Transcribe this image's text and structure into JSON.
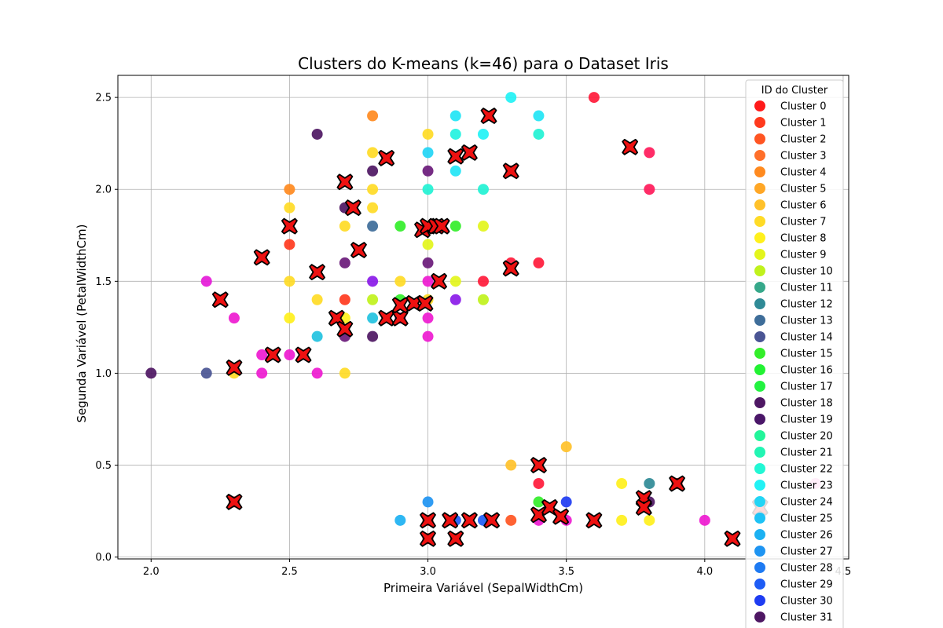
{
  "chart_data": {
    "type": "scatter",
    "title": "Clusters do K-means (k=46) para o Dataset Iris",
    "xlabel": "Primeira Variável (SepalWidthCm)",
    "ylabel": "Segunda Variável (PetalWidthCm)",
    "xlim": [
      1.88,
      4.52
    ],
    "ylim": [
      -0.01,
      2.62
    ],
    "xticks": [
      "2.0",
      "2.5",
      "3.0",
      "3.5",
      "4.0",
      "4.5"
    ],
    "yticks": [
      "0.0",
      "0.5",
      "1.0",
      "1.5",
      "2.0",
      "2.5"
    ],
    "grid": true,
    "legend": {
      "title": "ID do Cluster",
      "placement": "right",
      "entries": [
        {
          "label": "Cluster 0",
          "color": "#ff1a1a"
        },
        {
          "label": "Cluster 1",
          "color": "#ff3a1e"
        },
        {
          "label": "Cluster 2",
          "color": "#ff5522"
        },
        {
          "label": "Cluster 3",
          "color": "#ff6f2a"
        },
        {
          "label": "Cluster 4",
          "color": "#ff8a1f"
        },
        {
          "label": "Cluster 5",
          "color": "#ffa726"
        },
        {
          "label": "Cluster 6",
          "color": "#ffc12a"
        },
        {
          "label": "Cluster 7",
          "color": "#ffdb26"
        },
        {
          "label": "Cluster 8",
          "color": "#fff01c"
        },
        {
          "label": "Cluster 9",
          "color": "#e3f51c"
        },
        {
          "label": "Cluster 10",
          "color": "#c0f21c"
        },
        {
          "label": "Cluster 11",
          "color": "#36a88a"
        },
        {
          "label": "Cluster 12",
          "color": "#2f8a96"
        },
        {
          "label": "Cluster 13",
          "color": "#3e6d99"
        },
        {
          "label": "Cluster 14",
          "color": "#4a5594"
        },
        {
          "label": "Cluster 15",
          "color": "#33ee2a"
        },
        {
          "label": "Cluster 16",
          "color": "#22f233"
        },
        {
          "label": "Cluster 17",
          "color": "#22f240"
        },
        {
          "label": "Cluster 18",
          "color": "#4e1763"
        },
        {
          "label": "Cluster 19",
          "color": "#4a1668"
        },
        {
          "label": "Cluster 20",
          "color": "#22f59a"
        },
        {
          "label": "Cluster 21",
          "color": "#22f5b3"
        },
        {
          "label": "Cluster 22",
          "color": "#22f7d4"
        },
        {
          "label": "Cluster 23",
          "color": "#22f2f5"
        },
        {
          "label": "Cluster 24",
          "color": "#22d5f5"
        },
        {
          "label": "Cluster 25",
          "color": "#1ec2f5"
        },
        {
          "label": "Cluster 26",
          "color": "#1cb1f2"
        },
        {
          "label": "Cluster 27",
          "color": "#1e94f2"
        },
        {
          "label": "Cluster 28",
          "color": "#1e7af2"
        },
        {
          "label": "Cluster 29",
          "color": "#1e5cf5"
        },
        {
          "label": "Cluster 30",
          "color": "#1e3cf2"
        },
        {
          "label": "Cluster 31",
          "color": "#4e1763"
        }
      ]
    },
    "points": [
      {
        "x": 2.0,
        "y": 1.0,
        "c": "#4e1763"
      },
      {
        "x": 2.2,
        "y": 1.5,
        "c": "#e51ad8"
      },
      {
        "x": 2.2,
        "y": 1.0,
        "c": "#4a5594"
      },
      {
        "x": 2.3,
        "y": 1.3,
        "c": "#ee1ad0"
      },
      {
        "x": 2.3,
        "y": 1.0,
        "c": "#ffdb26"
      },
      {
        "x": 2.3,
        "y": 0.3,
        "c": "#ff1a1a"
      },
      {
        "x": 2.4,
        "y": 1.1,
        "c": "#ee1ad0"
      },
      {
        "x": 2.4,
        "y": 1.0,
        "c": "#ee1ad0"
      },
      {
        "x": 2.5,
        "y": 2.0,
        "c": "#ff8a1f"
      },
      {
        "x": 2.5,
        "y": 1.9,
        "c": "#ffdb26"
      },
      {
        "x": 2.5,
        "y": 1.7,
        "c": "#ff3a1e"
      },
      {
        "x": 2.5,
        "y": 1.5,
        "c": "#ffdb26"
      },
      {
        "x": 2.5,
        "y": 1.3,
        "c": "#fff01c"
      },
      {
        "x": 2.5,
        "y": 1.1,
        "c": "#ee1ad0"
      },
      {
        "x": 2.6,
        "y": 2.3,
        "c": "#4e1763"
      },
      {
        "x": 2.6,
        "y": 1.4,
        "c": "#ffdb26"
      },
      {
        "x": 2.6,
        "y": 1.2,
        "c": "#22c2e0"
      },
      {
        "x": 2.6,
        "y": 1.0,
        "c": "#ee1ad0"
      },
      {
        "x": 2.7,
        "y": 1.9,
        "c": "#4e1763"
      },
      {
        "x": 2.7,
        "y": 1.8,
        "c": "#ffdb26"
      },
      {
        "x": 2.7,
        "y": 1.6,
        "c": "#6a1a7a"
      },
      {
        "x": 2.7,
        "y": 1.4,
        "c": "#ff3a1e"
      },
      {
        "x": 2.7,
        "y": 1.3,
        "c": "#fff01c"
      },
      {
        "x": 2.7,
        "y": 1.2,
        "c": "#6a1a7a"
      },
      {
        "x": 2.7,
        "y": 1.0,
        "c": "#ffdb26"
      },
      {
        "x": 2.8,
        "y": 2.4,
        "c": "#ff8a1f"
      },
      {
        "x": 2.8,
        "y": 2.2,
        "c": "#ffdb26"
      },
      {
        "x": 2.8,
        "y": 2.1,
        "c": "#4e1763"
      },
      {
        "x": 2.8,
        "y": 2.0,
        "c": "#ffdb26"
      },
      {
        "x": 2.8,
        "y": 1.9,
        "c": "#ffdb26"
      },
      {
        "x": 2.8,
        "y": 1.8,
        "c": "#3e6d99"
      },
      {
        "x": 2.8,
        "y": 1.5,
        "c": "#8a1ae8"
      },
      {
        "x": 2.8,
        "y": 1.4,
        "c": "#c0f21c"
      },
      {
        "x": 2.8,
        "y": 1.3,
        "c": "#22c2e0"
      },
      {
        "x": 2.8,
        "y": 1.2,
        "c": "#4e1763"
      },
      {
        "x": 2.9,
        "y": 1.8,
        "c": "#33ee2a"
      },
      {
        "x": 2.9,
        "y": 1.5,
        "c": "#ffdb26"
      },
      {
        "x": 2.9,
        "y": 1.4,
        "c": "#33ee2a"
      },
      {
        "x": 2.9,
        "y": 1.3,
        "c": "#ee1ad0"
      },
      {
        "x": 2.9,
        "y": 0.2,
        "c": "#1cb1f2"
      },
      {
        "x": 3.0,
        "y": 2.3,
        "c": "#ffdb26"
      },
      {
        "x": 3.0,
        "y": 2.2,
        "c": "#22d5f5"
      },
      {
        "x": 3.0,
        "y": 2.1,
        "c": "#6a1a7a"
      },
      {
        "x": 3.0,
        "y": 2.0,
        "c": "#22f2d4"
      },
      {
        "x": 3.0,
        "y": 1.8,
        "c": "#ffdb26"
      },
      {
        "x": 3.0,
        "y": 1.7,
        "c": "#e3f51c"
      },
      {
        "x": 3.0,
        "y": 1.6,
        "c": "#6a1a7a"
      },
      {
        "x": 3.0,
        "y": 1.5,
        "c": "#ee1ad0"
      },
      {
        "x": 3.0,
        "y": 1.4,
        "c": "#ffdb26"
      },
      {
        "x": 3.0,
        "y": 1.3,
        "c": "#ee1ad0"
      },
      {
        "x": 3.0,
        "y": 1.2,
        "c": "#ee1ad0"
      },
      {
        "x": 3.0,
        "y": 0.3,
        "c": "#1e94f2"
      },
      {
        "x": 3.0,
        "y": 0.2,
        "c": "#ff3a1e"
      },
      {
        "x": 3.0,
        "y": 0.1,
        "c": "#ff1a1a"
      },
      {
        "x": 3.1,
        "y": 2.4,
        "c": "#22e5f5"
      },
      {
        "x": 3.1,
        "y": 2.3,
        "c": "#22f2e0"
      },
      {
        "x": 3.1,
        "y": 2.1,
        "c": "#22e5f5"
      },
      {
        "x": 3.1,
        "y": 1.8,
        "c": "#33ee2a"
      },
      {
        "x": 3.1,
        "y": 1.5,
        "c": "#e3f51c"
      },
      {
        "x": 3.1,
        "y": 1.4,
        "c": "#8a1ae8"
      },
      {
        "x": 3.1,
        "y": 0.2,
        "c": "#1e5cf5"
      },
      {
        "x": 3.1,
        "y": 0.1,
        "c": "#ff1a1a"
      },
      {
        "x": 3.2,
        "y": 2.3,
        "c": "#22f2f5"
      },
      {
        "x": 3.2,
        "y": 2.0,
        "c": "#22f2d4"
      },
      {
        "x": 3.2,
        "y": 1.8,
        "c": "#e3f51c"
      },
      {
        "x": 3.2,
        "y": 1.5,
        "c": "#ff1a3a"
      },
      {
        "x": 3.2,
        "y": 1.4,
        "c": "#c0f21c"
      },
      {
        "x": 3.2,
        "y": 0.2,
        "c": "#1e5cf5"
      },
      {
        "x": 3.3,
        "y": 2.5,
        "c": "#22f2f5"
      },
      {
        "x": 3.3,
        "y": 2.1,
        "c": "#ff1a3a"
      },
      {
        "x": 3.3,
        "y": 1.6,
        "c": "#ff1a3a"
      },
      {
        "x": 3.3,
        "y": 0.5,
        "c": "#ffc12a"
      },
      {
        "x": 3.3,
        "y": 0.2,
        "c": "#ff5522"
      },
      {
        "x": 3.4,
        "y": 2.4,
        "c": "#22e5f5"
      },
      {
        "x": 3.4,
        "y": 2.3,
        "c": "#22f2d4"
      },
      {
        "x": 3.4,
        "y": 1.6,
        "c": "#ff1a3a"
      },
      {
        "x": 3.4,
        "y": 0.4,
        "c": "#ff1a3a"
      },
      {
        "x": 3.4,
        "y": 0.3,
        "c": "#33ee2a"
      },
      {
        "x": 3.4,
        "y": 0.2,
        "c": "#ee1ad0"
      },
      {
        "x": 3.5,
        "y": 0.6,
        "c": "#ffc12a"
      },
      {
        "x": 3.5,
        "y": 0.3,
        "c": "#1e3cf2"
      },
      {
        "x": 3.5,
        "y": 0.2,
        "c": "#ee1ad0"
      },
      {
        "x": 3.6,
        "y": 2.5,
        "c": "#ff1a3a"
      },
      {
        "x": 3.7,
        "y": 0.4,
        "c": "#fff01c"
      },
      {
        "x": 3.7,
        "y": 0.2,
        "c": "#fff01c"
      },
      {
        "x": 3.8,
        "y": 2.2,
        "c": "#ff1a5a"
      },
      {
        "x": 3.8,
        "y": 2.0,
        "c": "#ff1a5a"
      },
      {
        "x": 3.8,
        "y": 0.4,
        "c": "#2f8a96"
      },
      {
        "x": 3.8,
        "y": 0.3,
        "c": "#4e1763"
      },
      {
        "x": 3.8,
        "y": 0.2,
        "c": "#fff01c"
      },
      {
        "x": 3.9,
        "y": 0.4,
        "c": "#ff1a1a"
      },
      {
        "x": 4.0,
        "y": 0.2,
        "c": "#ee1ad0"
      },
      {
        "x": 4.4,
        "y": 0.4,
        "c": "#ff7ad0"
      }
    ],
    "centroids": [
      {
        "x": 2.25,
        "y": 1.4
      },
      {
        "x": 2.3,
        "y": 1.03
      },
      {
        "x": 2.3,
        "y": 0.3
      },
      {
        "x": 2.4,
        "y": 1.63
      },
      {
        "x": 2.44,
        "y": 1.1
      },
      {
        "x": 2.5,
        "y": 1.8
      },
      {
        "x": 2.55,
        "y": 1.1
      },
      {
        "x": 2.6,
        "y": 1.55
      },
      {
        "x": 2.67,
        "y": 1.3
      },
      {
        "x": 2.7,
        "y": 2.04
      },
      {
        "x": 2.7,
        "y": 1.24
      },
      {
        "x": 2.73,
        "y": 1.9
      },
      {
        "x": 2.75,
        "y": 1.67
      },
      {
        "x": 2.85,
        "y": 2.17
      },
      {
        "x": 2.85,
        "y": 1.3
      },
      {
        "x": 2.9,
        "y": 1.3
      },
      {
        "x": 2.9,
        "y": 1.37
      },
      {
        "x": 2.95,
        "y": 1.38
      },
      {
        "x": 2.98,
        "y": 1.78
      },
      {
        "x": 3.0,
        "y": 1.8
      },
      {
        "x": 2.99,
        "y": 1.38
      },
      {
        "x": 3.0,
        "y": 0.2
      },
      {
        "x": 3.0,
        "y": 0.1
      },
      {
        "x": 3.03,
        "y": 1.8
      },
      {
        "x": 3.05,
        "y": 1.8
      },
      {
        "x": 3.04,
        "y": 1.5
      },
      {
        "x": 3.1,
        "y": 2.18
      },
      {
        "x": 3.15,
        "y": 2.2
      },
      {
        "x": 3.08,
        "y": 0.2
      },
      {
        "x": 3.1,
        "y": 0.1
      },
      {
        "x": 3.15,
        "y": 0.2
      },
      {
        "x": 3.22,
        "y": 2.4
      },
      {
        "x": 3.23,
        "y": 0.2
      },
      {
        "x": 3.3,
        "y": 2.1
      },
      {
        "x": 3.3,
        "y": 1.57
      },
      {
        "x": 3.4,
        "y": 0.5
      },
      {
        "x": 3.4,
        "y": 0.23
      },
      {
        "x": 3.44,
        "y": 0.27
      },
      {
        "x": 3.48,
        "y": 0.22
      },
      {
        "x": 3.6,
        "y": 0.2
      },
      {
        "x": 3.73,
        "y": 2.23
      },
      {
        "x": 3.78,
        "y": 0.32
      },
      {
        "x": 3.78,
        "y": 0.27
      },
      {
        "x": 3.9,
        "y": 0.4
      },
      {
        "x": 4.1,
        "y": 0.1
      },
      {
        "x": 4.2,
        "y": 0.27
      }
    ]
  }
}
